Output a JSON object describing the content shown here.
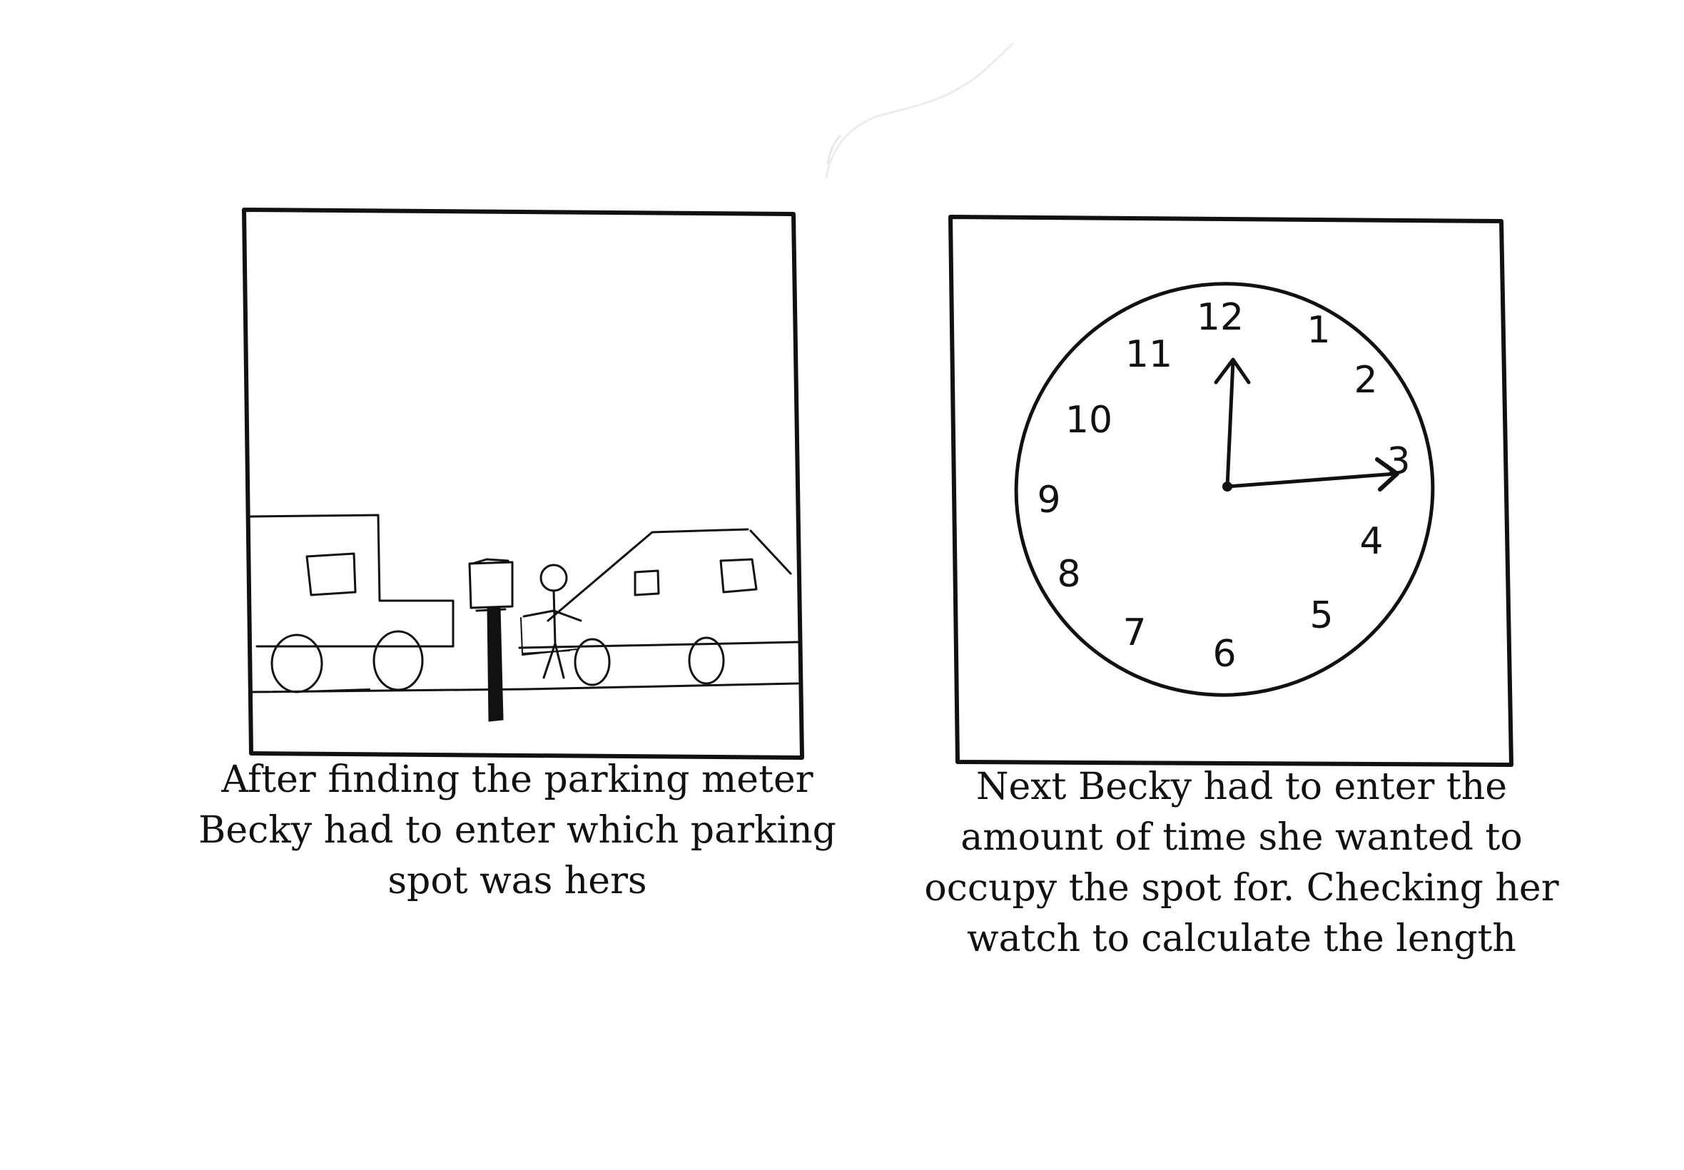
{
  "panels": [
    {
      "caption_lines": [
        "After finding the parking meter",
        "Becky had to enter which parking",
        "spot was hers"
      ]
    },
    {
      "caption_lines": [
        "Next Becky had to enter the",
        "amount of time she wanted to",
        "occupy the spot for. Checking her",
        "watch to calculate the length"
      ],
      "clock": {
        "numerals": [
          "12",
          "1",
          "2",
          "3",
          "4",
          "5",
          "6",
          "7",
          "8",
          "9",
          "10",
          "11"
        ],
        "time_shown": "12:15"
      }
    }
  ]
}
